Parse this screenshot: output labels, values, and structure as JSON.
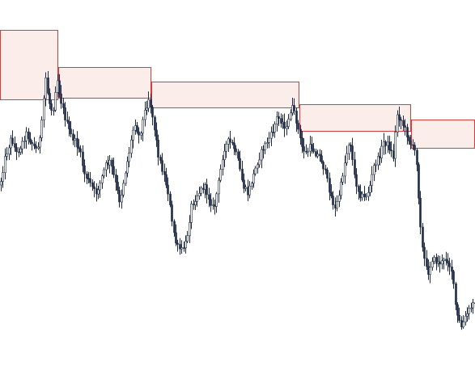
{
  "chart_data": {
    "type": "candlestick",
    "title": "",
    "xlabel": "",
    "ylabel": "",
    "grid": false,
    "legend": "none",
    "ylim": [
      0,
      484
    ],
    "colors": {
      "background": "#ffffff",
      "candle_body": "#1f2a44",
      "candle_wick": "#1f2a44",
      "zone_fill": "#fbeeea",
      "zone_border": "#d83c3c"
    },
    "path_anchors": [
      [
        0,
        229
      ],
      [
        6,
        195
      ],
      [
        14,
        170
      ],
      [
        20,
        190
      ],
      [
        26,
        180
      ],
      [
        32,
        165
      ],
      [
        38,
        175
      ],
      [
        44,
        185
      ],
      [
        50,
        170
      ],
      [
        56,
        95
      ],
      [
        60,
        125
      ],
      [
        65,
        140
      ],
      [
        70,
        95
      ],
      [
        74,
        120
      ],
      [
        80,
        145
      ],
      [
        86,
        165
      ],
      [
        92,
        175
      ],
      [
        98,
        185
      ],
      [
        104,
        215
      ],
      [
        110,
        225
      ],
      [
        118,
        240
      ],
      [
        124,
        225
      ],
      [
        130,
        205
      ],
      [
        136,
        200
      ],
      [
        142,
        225
      ],
      [
        148,
        250
      ],
      [
        154,
        215
      ],
      [
        160,
        185
      ],
      [
        166,
        150
      ],
      [
        172,
        170
      ],
      [
        178,
        140
      ],
      [
        184,
        120
      ],
      [
        190,
        155
      ],
      [
        196,
        195
      ],
      [
        202,
        215
      ],
      [
        208,
        240
      ],
      [
        212,
        275
      ],
      [
        218,
        305
      ],
      [
        224,
        310
      ],
      [
        230,
        300
      ],
      [
        236,
        255
      ],
      [
        244,
        240
      ],
      [
        252,
        230
      ],
      [
        258,
        245
      ],
      [
        264,
        260
      ],
      [
        270,
        225
      ],
      [
        276,
        185
      ],
      [
        282,
        175
      ],
      [
        288,
        180
      ],
      [
        294,
        200
      ],
      [
        300,
        230
      ],
      [
        306,
        240
      ],
      [
        312,
        220
      ],
      [
        318,
        200
      ],
      [
        324,
        185
      ],
      [
        330,
        175
      ],
      [
        336,
        165
      ],
      [
        342,
        145
      ],
      [
        348,
        150
      ],
      [
        354,
        160
      ],
      [
        360,
        130
      ],
      [
        366,
        150
      ],
      [
        372,
        180
      ],
      [
        378,
        190
      ],
      [
        384,
        180
      ],
      [
        390,
        190
      ],
      [
        396,
        195
      ],
      [
        402,
        215
      ],
      [
        408,
        240
      ],
      [
        414,
        260
      ],
      [
        420,
        235
      ],
      [
        426,
        200
      ],
      [
        432,
        170
      ],
      [
        438,
        220
      ],
      [
        444,
        240
      ],
      [
        450,
        245
      ],
      [
        456,
        235
      ],
      [
        462,
        205
      ],
      [
        468,
        195
      ],
      [
        474,
        175
      ],
      [
        480,
        180
      ],
      [
        486,
        195
      ],
      [
        490,
        140
      ],
      [
        496,
        150
      ],
      [
        502,
        165
      ],
      [
        508,
        180
      ],
      [
        514,
        190
      ],
      [
        518,
        260
      ],
      [
        522,
        310
      ],
      [
        528,
        340
      ],
      [
        534,
        320
      ],
      [
        540,
        325
      ],
      [
        546,
        325
      ],
      [
        552,
        320
      ],
      [
        558,
        335
      ],
      [
        564,
        390
      ],
      [
        570,
        405
      ],
      [
        576,
        390
      ],
      [
        582,
        380
      ],
      [
        587,
        372
      ]
    ],
    "supply_zones": [
      {
        "x_start": 0,
        "x_end": 72,
        "y_top": 37,
        "y_bottom": 123
      },
      {
        "x_start": 72,
        "x_end": 187,
        "y_top": 83,
        "y_bottom": 121
      },
      {
        "x_start": 187,
        "x_end": 370,
        "y_top": 101,
        "y_bottom": 133
      },
      {
        "x_start": 370,
        "x_end": 508,
        "y_top": 129,
        "y_bottom": 162
      },
      {
        "x_start": 508,
        "x_end": 587,
        "y_top": 148,
        "y_bottom": 183
      }
    ]
  }
}
